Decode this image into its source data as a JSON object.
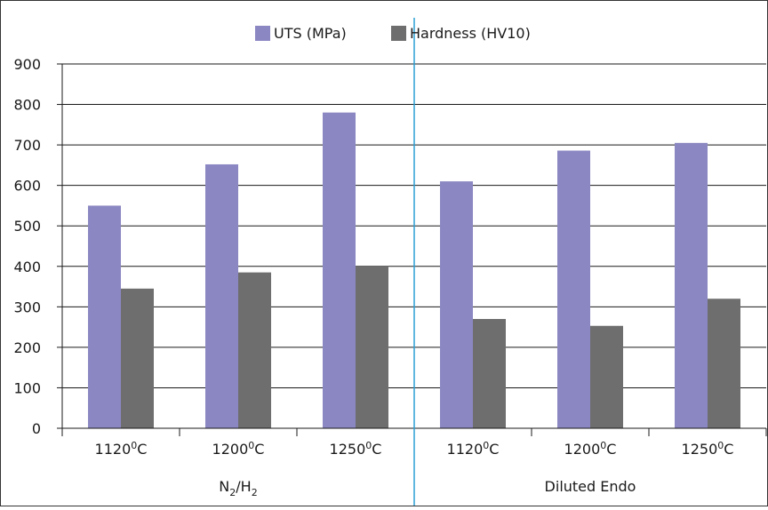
{
  "chart_data": {
    "type": "bar",
    "categories": [
      "1120",
      "1200",
      "1250",
      "1120",
      "1200",
      "1250"
    ],
    "category_unit_sup": "0",
    "category_unit_suffix": "C",
    "groups": [
      {
        "label_parts": [
          {
            "t": "N"
          },
          {
            "t": "2",
            "sub": true
          },
          {
            "t": "/H"
          },
          {
            "t": "2",
            "sub": true
          }
        ],
        "categories": [
          0,
          1,
          2
        ]
      },
      {
        "label_parts": [
          {
            "t": "Diluted Endo"
          }
        ],
        "categories": [
          3,
          4,
          5
        ]
      }
    ],
    "series": [
      {
        "name": "UTS (MPa)",
        "color": "#8b87c2",
        "values": [
          550,
          652,
          780,
          610,
          686,
          705
        ]
      },
      {
        "name": "Hardness (HV10)",
        "color": "#6e6e6e",
        "values": [
          345,
          385,
          400,
          270,
          253,
          320
        ]
      }
    ],
    "ylim": [
      0,
      900
    ],
    "yticks": [
      0,
      100,
      200,
      300,
      400,
      500,
      600,
      700,
      800,
      900
    ],
    "grid": true,
    "legend_position": "top-center",
    "divider_color": "#2a9fd6"
  }
}
